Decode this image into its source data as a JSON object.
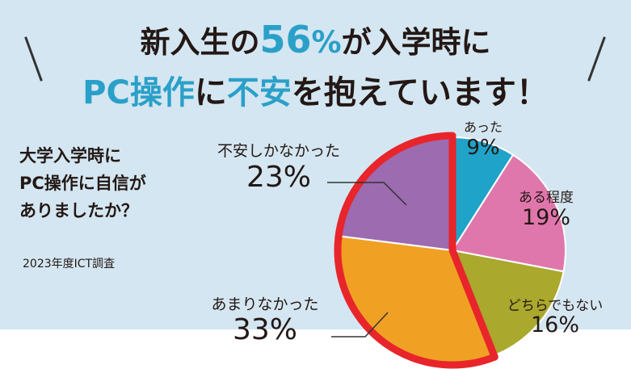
{
  "headline": {
    "line1": {
      "pre": "新入生の",
      "value": "56",
      "unit": "%",
      "post": "が入学時に"
    },
    "line2": {
      "a": "PC操作",
      "b": "に",
      "c": "不安",
      "d": "を抱えています！"
    }
  },
  "question": {
    "lines": [
      "大学入学時に",
      "PC操作に自信が",
      "ありましたか？"
    ]
  },
  "survey_note": "2023年度ICT調査",
  "chart_data": {
    "type": "pie",
    "categories": [
      "あった",
      "ある程度",
      "どちらでもない",
      "あまりなかった",
      "不安しかなかった"
    ],
    "values": [
      9,
      19,
      16,
      33,
      23
    ],
    "value_labels": [
      "9%",
      "19%",
      "16%",
      "33%",
      "23%"
    ],
    "colors": [
      "#1fa3c8",
      "#e077ac",
      "#aaa82d",
      "#f0a124",
      "#9d6bb0"
    ],
    "highlighted": [
      "あまりなかった",
      "不安しかなかった"
    ],
    "highlight_color": "#e8252b"
  },
  "colors": {
    "accent": "#2aa0c8",
    "background": "#d4e6f1",
    "text": "#231815"
  }
}
